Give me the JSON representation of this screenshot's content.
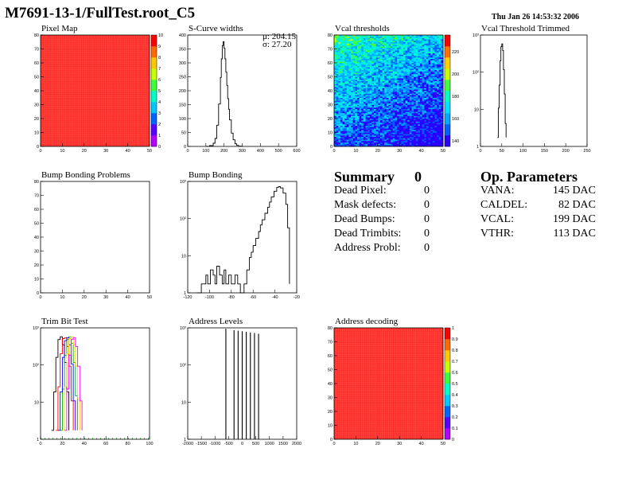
{
  "page": {
    "title": "M7691-13-1/FullTest.root_C5",
    "date": "Thu Jan 26 14:53:32 2006"
  },
  "summary": {
    "title": "Summary",
    "total": "0",
    "rows": [
      {
        "label": "Dead Pixel:",
        "value": "0"
      },
      {
        "label": "Mask defects:",
        "value": "0"
      },
      {
        "label": "Dead Bumps:",
        "value": "0"
      },
      {
        "label": "Dead Trimbits:",
        "value": "0"
      },
      {
        "label": "Address Probl:",
        "value": "0"
      }
    ]
  },
  "op_params": {
    "title": "Op. Parameters",
    "rows": [
      {
        "label": "VANA:",
        "value": "145 DAC"
      },
      {
        "label": "CALDEL:",
        "value": "82 DAC"
      },
      {
        "label": "VCAL:",
        "value": "199 DAC"
      },
      {
        "label": "VTHR:",
        "value": "113 DAC"
      }
    ]
  },
  "colors": {
    "map_red": "#ff2a2a",
    "palette": [
      "#e8302a",
      "#ff0000",
      "#ff6a00",
      "#ffc800",
      "#c8ff00",
      "#3cff3c",
      "#00ffc8",
      "#00c8ff",
      "#0064ff",
      "#5a00ff",
      "#b400ff"
    ],
    "trim_colors": [
      "#000000",
      "#ff0000",
      "#00aa00",
      "#0000ff",
      "#ffcc00",
      "#ff00ff"
    ]
  },
  "chart_data": [
    {
      "id": "pixel-map",
      "type": "heatmap",
      "title": "Pixel Map",
      "xlim": [
        0,
        52
      ],
      "ylim": [
        0,
        80
      ],
      "xticks": [
        "0",
        "10",
        "20",
        "30",
        "40",
        "50"
      ],
      "yticks": [
        "0",
        "10",
        "20",
        "30",
        "40",
        "50",
        "60",
        "70",
        "80"
      ],
      "zticks": [
        "0",
        "1",
        "2",
        "3",
        "4",
        "5",
        "6",
        "7",
        "8",
        "9",
        "10"
      ],
      "value": 10
    },
    {
      "id": "s-curve-widths",
      "type": "line",
      "title": "S-Curve widths",
      "xlim": [
        0,
        600
      ],
      "ylim": [
        0,
        420
      ],
      "xticks": [
        "0",
        "100",
        "200",
        "300",
        "400",
        "500",
        "600"
      ],
      "yticks": [
        "0",
        "50",
        "100",
        "150",
        "200",
        "250",
        "300",
        "350",
        "400"
      ],
      "stats": [
        "μ: 204.15",
        "σ: 27.20"
      ],
      "x": [
        100,
        120,
        140,
        150,
        160,
        170,
        180,
        185,
        190,
        195,
        200,
        205,
        210,
        215,
        220,
        225,
        230,
        240,
        250,
        260,
        270,
        280,
        300
      ],
      "y": [
        0,
        3,
        12,
        30,
        80,
        160,
        260,
        330,
        380,
        395,
        370,
        330,
        280,
        230,
        180,
        140,
        100,
        50,
        25,
        10,
        4,
        1,
        0
      ]
    },
    {
      "id": "vcal-thresholds",
      "type": "heatmap",
      "title": "Vcal thresholds",
      "xlim": [
        0,
        52
      ],
      "ylim": [
        0,
        80
      ],
      "xticks": [
        "0",
        "10",
        "20",
        "30",
        "40",
        "50"
      ],
      "yticks": [
        "0",
        "10",
        "20",
        "30",
        "40",
        "50",
        "60",
        "70",
        "80"
      ],
      "zticks": [
        "140",
        "160",
        "180",
        "200",
        "220"
      ],
      "zlim": [
        135,
        235
      ]
    },
    {
      "id": "vcal-threshold-trimmed",
      "type": "line",
      "title": "Vcal Threshold Trimmed",
      "xlim": [
        0,
        250
      ],
      "ylim": [
        0.5,
        3000
      ],
      "log_y": true,
      "xticks": [
        "0",
        "50",
        "100",
        "150",
        "200",
        "250"
      ],
      "yticks": [
        "1",
        "10",
        "10²",
        "10³"
      ],
      "x": [
        40,
        42,
        44,
        46,
        48,
        50,
        52,
        54,
        56,
        58,
        60
      ],
      "y": [
        1,
        10,
        60,
        400,
        1200,
        1500,
        900,
        200,
        30,
        3,
        1
      ]
    },
    {
      "id": "bump-bonding-problems",
      "type": "heatmap",
      "title": "Bump Bonding Problems",
      "xlim": [
        0,
        52
      ],
      "ylim": [
        0,
        80
      ],
      "xticks": [
        "0",
        "10",
        "20",
        "30",
        "40",
        "50"
      ],
      "yticks": [
        "0",
        "10",
        "20",
        "30",
        "40",
        "50",
        "60",
        "70",
        "80"
      ]
    },
    {
      "id": "bump-bonding",
      "type": "line",
      "title": "Bump Bonding",
      "xlim": [
        -140,
        -20
      ],
      "ylim": [
        0.5,
        3000
      ],
      "log_y": true,
      "xticks": [
        "-120",
        "-100",
        "-80",
        "-60",
        "-40",
        "-20"
      ],
      "yticks": [
        "1",
        "10",
        "10²",
        "10³"
      ],
      "x": [
        -130,
        -125,
        -120,
        -118,
        -115,
        -112,
        -110,
        -108,
        -105,
        -102,
        -100,
        -98,
        -95,
        -92,
        -90,
        -88,
        -85,
        -82,
        -80,
        -78,
        -75,
        -72,
        -70,
        -68,
        -65,
        -62,
        -60,
        -58,
        -55,
        -52,
        -50,
        -48,
        -45,
        -42,
        -40,
        -38,
        -35,
        -32,
        -30,
        -28
      ],
      "y": [
        0,
        1,
        2,
        1,
        3,
        2,
        1,
        4,
        2,
        1,
        3,
        1,
        2,
        1,
        1,
        2,
        1,
        0,
        0,
        1,
        3,
        8,
        12,
        20,
        35,
        60,
        100,
        150,
        250,
        400,
        600,
        900,
        1400,
        1900,
        2000,
        1800,
        1200,
        500,
        80,
        1
      ]
    },
    {
      "id": "trim-bit-test",
      "type": "line",
      "title": "Trim Bit Test",
      "xlim": [
        0,
        100
      ],
      "ylim": [
        0.5,
        3000
      ],
      "log_y": true,
      "xticks": [
        "0",
        "20",
        "40",
        "60",
        "80",
        "100"
      ],
      "yticks": [
        "1",
        "10",
        "10²",
        "10³"
      ],
      "series": [
        {
          "x": [
            10,
            12,
            14,
            16,
            18,
            20,
            22,
            24,
            26
          ],
          "y": [
            1,
            20,
            300,
            1200,
            1500,
            800,
            200,
            20,
            1
          ]
        },
        {
          "x": [
            14,
            16,
            18,
            20,
            22,
            24,
            26,
            28,
            30
          ],
          "y": [
            1,
            30,
            400,
            1300,
            1400,
            700,
            150,
            10,
            1
          ]
        },
        {
          "x": [
            18,
            20,
            22,
            24,
            26,
            28,
            30,
            32,
            34
          ],
          "y": [
            1,
            25,
            350,
            1200,
            1500,
            900,
            200,
            15,
            1
          ]
        },
        {
          "x": [
            16,
            18,
            20,
            22,
            24,
            26,
            28,
            30,
            32
          ],
          "y": [
            1,
            20,
            300,
            1100,
            1400,
            800,
            180,
            10,
            1
          ]
        },
        {
          "x": [
            20,
            22,
            24,
            26,
            28,
            30,
            32,
            34,
            36
          ],
          "y": [
            1,
            30,
            400,
            1300,
            1500,
            800,
            150,
            12,
            1
          ]
        },
        {
          "x": [
            22,
            24,
            26,
            28,
            30,
            32,
            34,
            36,
            38
          ],
          "y": [
            1,
            25,
            350,
            1200,
            1400,
            700,
            150,
            10,
            1
          ]
        }
      ]
    },
    {
      "id": "address-levels",
      "type": "bar",
      "title": "Address Levels",
      "xlim": [
        -2000,
        2000
      ],
      "ylim": [
        0.5,
        3000
      ],
      "log_y": true,
      "xticks": [
        "-2000",
        "-1500",
        "-1000",
        "-500",
        "0",
        "500",
        "1000",
        "1500",
        "2000"
      ],
      "yticks": [
        "1",
        "10",
        "10²",
        "10³"
      ],
      "x": [
        -600,
        -300,
        -150,
        0,
        150,
        300,
        450,
        600
      ],
      "y": [
        2800,
        2500,
        2400,
        2300,
        2200,
        2100,
        2000,
        1900
      ]
    },
    {
      "id": "address-decoding",
      "type": "heatmap",
      "title": "Address decoding",
      "xlim": [
        0,
        52
      ],
      "ylim": [
        0,
        80
      ],
      "xticks": [
        "0",
        "10",
        "20",
        "30",
        "40",
        "50"
      ],
      "yticks": [
        "0",
        "10",
        "20",
        "30",
        "40",
        "50",
        "60",
        "70",
        "80"
      ],
      "zticks": [
        "0",
        "0.1",
        "0.2",
        "0.3",
        "0.4",
        "0.5",
        "0.6",
        "0.7",
        "0.8",
        "0.9",
        "1"
      ],
      "value": 1
    }
  ]
}
